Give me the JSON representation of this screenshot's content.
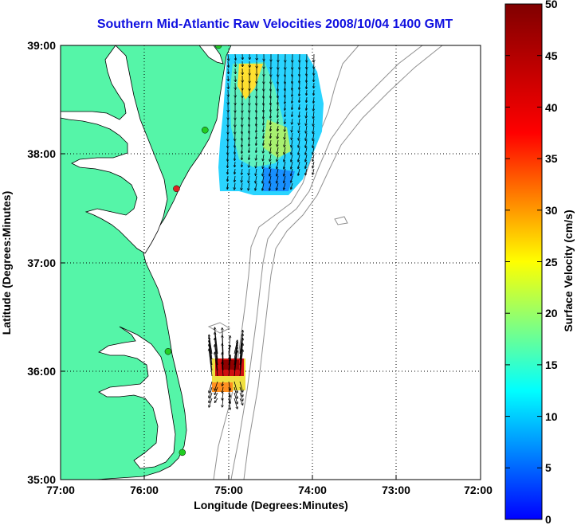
{
  "title": "Southern Mid-Atlantic Raw Velocities 2008/10/04 1400 GMT",
  "xaxis": {
    "label": "Longitude (Degrees:Minutes)",
    "ticks": [
      "77:00",
      "76:00",
      "75:00",
      "74:00",
      "73:00",
      "72:00"
    ]
  },
  "yaxis": {
    "label": "Latitude (Degrees:Minutes)",
    "ticks": [
      "39:00",
      "38:00",
      "37:00",
      "36:00",
      "35:00"
    ]
  },
  "colorbar": {
    "label": "Surface Velocity (cm/s)",
    "ticks": [
      "50",
      "45",
      "40",
      "35",
      "30",
      "25",
      "20",
      "15",
      "10",
      "5",
      "0"
    ],
    "range": [
      0,
      50
    ],
    "colormap": "jet"
  },
  "colors": {
    "land": "#55f5a8",
    "coast_line": "#000000",
    "bathymetry": "#909090",
    "title": "#1010e0",
    "station_active": "#22cc22",
    "station_inactive": "#dd2222"
  },
  "stations": [
    {
      "lon": -75.12,
      "lat": 39.0,
      "status": "active"
    },
    {
      "lon": -75.28,
      "lat": 38.22,
      "status": "active"
    },
    {
      "lon": -75.62,
      "lat": 37.68,
      "status": "inactive"
    },
    {
      "lon": -75.72,
      "lat": 36.18,
      "status": "active"
    },
    {
      "lon": -75.55,
      "lat": 35.25,
      "status": "active"
    }
  ]
}
